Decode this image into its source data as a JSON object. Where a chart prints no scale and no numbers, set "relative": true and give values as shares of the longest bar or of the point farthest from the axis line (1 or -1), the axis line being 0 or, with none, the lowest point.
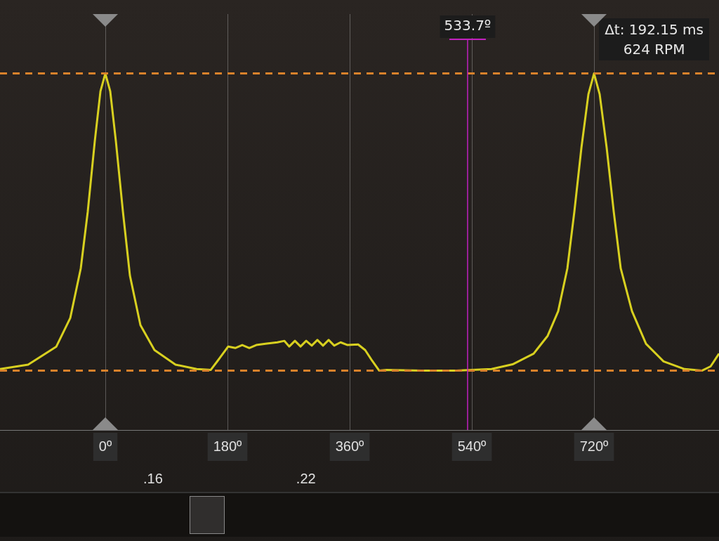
{
  "chart_data": {
    "type": "line",
    "relative": true,
    "x": [
      -155.2,
      -113.8,
      -72.4,
      -51.7,
      -36.2,
      -25.9,
      -15.5,
      -7.2,
      0,
      7.2,
      15.5,
      25.9,
      36.2,
      51.7,
      72.4,
      103.4,
      134.5,
      155.2,
      165.5,
      181.0,
      191.4,
      201.7,
      212.1,
      222.4,
      237.9,
      253.4,
      263.8,
      271.0,
      279.3,
      287.6,
      295.9,
      304.1,
      312.4,
      320.7,
      329.0,
      337.2,
      346.6,
      356.9,
      372.4,
      382.8,
      393.1,
      403.4,
      413.8,
      465.5,
      517.2,
      569.0,
      600.0,
      631.0,
      651.7,
      667.2,
      680.7,
      691.0,
      701.4,
      711.7,
      720,
      728.3,
      738.6,
      749.0,
      759.3,
      775.9,
      796.6,
      822.4,
      853.4,
      879.3,
      891.7,
      904.1
    ],
    "series": [
      {
        "color": "#d8d020",
        "values": [
          0.005,
          0.02,
          0.08,
          0.177,
          0.344,
          0.535,
          0.773,
          0.94,
          1,
          0.94,
          0.773,
          0.535,
          0.32,
          0.153,
          0.069,
          0.02,
          0.005,
          0.002,
          0.033,
          0.081,
          0.076,
          0.086,
          0.076,
          0.086,
          0.091,
          0.095,
          0.1,
          0.081,
          0.1,
          0.081,
          0.1,
          0.084,
          0.103,
          0.084,
          0.103,
          0.084,
          0.095,
          0.086,
          0.088,
          0.069,
          0.033,
          0,
          0.002,
          0,
          0,
          0.005,
          0.021,
          0.057,
          0.117,
          0.2,
          0.344,
          0.535,
          0.75,
          0.93,
          1,
          0.93,
          0.75,
          0.535,
          0.344,
          0.2,
          0.09,
          0.031,
          0.005,
          0,
          0.014,
          0.057
        ]
      }
    ],
    "xlim": [
      -155.2,
      904.1
    ],
    "xticks": [
      {
        "value": 0,
        "label": "0º"
      },
      {
        "value": 180,
        "label": "180º"
      },
      {
        "value": 360,
        "label": "360º"
      },
      {
        "value": 540,
        "label": "540º"
      },
      {
        "value": 720,
        "label": "720º"
      }
    ],
    "x2lim": [
      0.1,
      0.382
    ],
    "x2ticks": [
      {
        "value": 0.16,
        "label": ".16"
      },
      {
        "value": 0.22,
        "label": ".22"
      }
    ],
    "grid": "x",
    "marker": "none",
    "line_style": "solid",
    "legend": false,
    "ref_lines": [
      {
        "axis": "y",
        "value": 1,
        "color": "#d9822b",
        "line_style": "dashed"
      },
      {
        "axis": "y",
        "value": 0,
        "color": "#d9822b",
        "line_style": "dashed"
      },
      {
        "axis": "x",
        "value": 533.7,
        "label": "533.7º",
        "color": "#c020c0",
        "line_style": "solid"
      }
    ],
    "annotations": [
      "Δt: 192.15 ms",
      "624 RPM"
    ]
  }
}
